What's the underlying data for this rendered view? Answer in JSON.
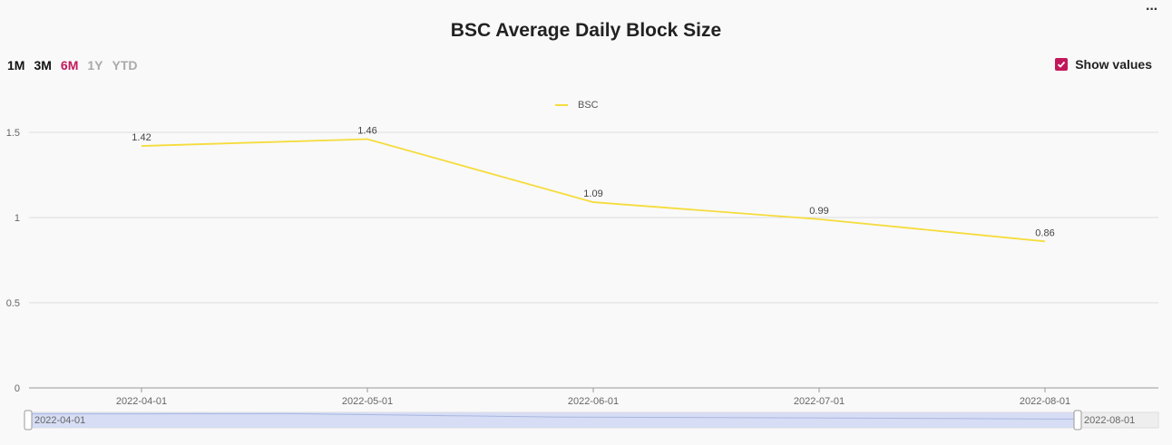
{
  "header": {
    "title": "BSC Average Daily Block Size",
    "more_icon": "more-horizontal-icon"
  },
  "ranges": [
    {
      "label": "1M",
      "state": "normal"
    },
    {
      "label": "3M",
      "state": "normal"
    },
    {
      "label": "6M",
      "state": "active"
    },
    {
      "label": "1Y",
      "state": "disabled"
    },
    {
      "label": "YTD",
      "state": "disabled"
    }
  ],
  "show_values": {
    "label": "Show values",
    "checked": true,
    "color": "#c2185b"
  },
  "chart_data": {
    "type": "line",
    "legend": "top-center",
    "grid": true,
    "x": [
      "2022-04-01",
      "2022-05-01",
      "2022-06-01",
      "2022-07-01",
      "2022-08-01"
    ],
    "series": [
      {
        "name": "BSC",
        "color": "#f5dc3c",
        "values": [
          1.42,
          1.46,
          1.09,
          0.99,
          0.86
        ]
      }
    ],
    "y_ticks": [
      "0",
      "0.5",
      "1",
      "1.5"
    ],
    "ylim": [
      0,
      1.5
    ],
    "value_labels": [
      "1.42",
      "1.46",
      "1.09",
      "0.99",
      "0.86"
    ],
    "zoom": {
      "start": "2022-04-01",
      "end": "2022-08-01"
    }
  }
}
